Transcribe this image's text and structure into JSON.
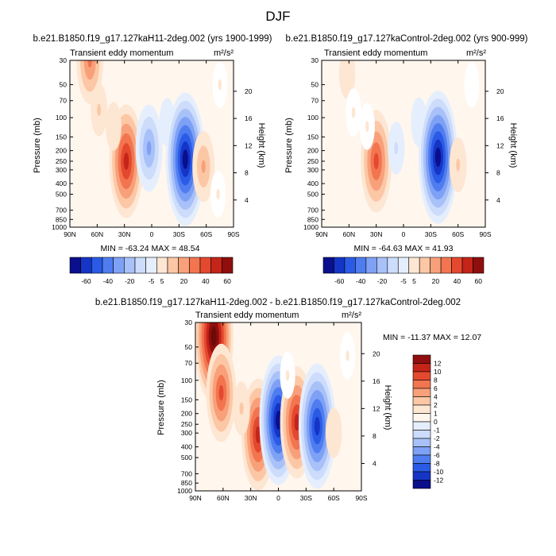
{
  "title": "DJF",
  "chart_data": [
    {
      "type": "heatmap",
      "title": "b.e21.B1850.f19_g17.127kaH11-2deg.002 (yrs 1900-1999)",
      "subtitle": "Transient eddy momentum",
      "units_label": "m²/s²",
      "xlabel": "",
      "ylabel": "Pressure (mb)",
      "ylabel_right": "Height (km)",
      "x_ticks": [
        "90N",
        "60N",
        "30N",
        "0",
        "30S",
        "60S",
        "90S"
      ],
      "x_tick_values": [
        90,
        60,
        30,
        0,
        -30,
        -60,
        -90
      ],
      "y_ticks": [
        "30",
        "50",
        "70",
        "100",
        "150",
        "200",
        "250",
        "300",
        "400",
        "500",
        "700",
        "850",
        "1000"
      ],
      "y_tick_values": [
        30,
        50,
        70,
        100,
        150,
        200,
        250,
        300,
        400,
        500,
        700,
        850,
        1000
      ],
      "ylim": [
        1000,
        30
      ],
      "height_ticks": [
        4,
        8,
        12,
        16,
        20
      ],
      "stats": "MIN = -63.24  MAX = 48.54",
      "min": -63.24,
      "max": 48.54,
      "features": [
        {
          "lat": 68,
          "p": 30,
          "value": 30
        },
        {
          "lat": 58,
          "p": 85,
          "value": 14
        },
        {
          "lat": 28,
          "p": 250,
          "value": 48.5
        },
        {
          "lat": 42,
          "p": 120,
          "value": 8
        },
        {
          "lat": 3,
          "p": 190,
          "value": -30
        },
        {
          "lat": -17,
          "p": 110,
          "value": -8
        },
        {
          "lat": -37,
          "p": 240,
          "value": -63.2
        },
        {
          "lat": -57,
          "p": 280,
          "value": 20
        },
        {
          "lat": -75,
          "p": 50,
          "value": 4
        },
        {
          "lat": -73,
          "p": 500,
          "value": 5
        }
      ]
    },
    {
      "type": "heatmap",
      "title": "b.e21.B1850.f19_g17.127kaControl-2deg.002 (yrs 900-999)",
      "subtitle": "Transient eddy momentum",
      "units_label": "m²/s²",
      "xlabel": "",
      "ylabel": "Pressure (mb)",
      "ylabel_right": "Height (km)",
      "x_ticks": [
        "90N",
        "60N",
        "30N",
        "0",
        "30S",
        "60S",
        "90S"
      ],
      "x_tick_values": [
        90,
        60,
        30,
        0,
        -30,
        -60,
        -90
      ],
      "y_ticks": [
        "30",
        "50",
        "70",
        "100",
        "150",
        "200",
        "250",
        "300",
        "400",
        "500",
        "700",
        "850",
        "1000"
      ],
      "y_tick_values": [
        30,
        50,
        70,
        100,
        150,
        200,
        250,
        300,
        400,
        500,
        700,
        850,
        1000
      ],
      "ylim": [
        1000,
        30
      ],
      "height_ticks": [
        4,
        8,
        12,
        16,
        20
      ],
      "stats": "MIN = -64.63  MAX = 41.93",
      "min": -64.63,
      "max": 41.93,
      "features": [
        {
          "lat": 62,
          "p": 40,
          "value": 10
        },
        {
          "lat": 55,
          "p": 90,
          "value": 8
        },
        {
          "lat": 30,
          "p": 250,
          "value": 41.9
        },
        {
          "lat": 40,
          "p": 120,
          "value": 6
        },
        {
          "lat": 8,
          "p": 190,
          "value": -15
        },
        {
          "lat": -17,
          "p": 110,
          "value": -10
        },
        {
          "lat": -38,
          "p": 230,
          "value": -64.6
        },
        {
          "lat": -60,
          "p": 270,
          "value": 18
        },
        {
          "lat": -75,
          "p": 50,
          "value": 4
        }
      ]
    },
    {
      "type": "heatmap",
      "title": "b.e21.B1850.f19_g17.127kaH11-2deg.002 - b.e21.B1850.f19_g17.127kaControl-2deg.002",
      "subtitle": "Transient eddy momentum",
      "units_label": "m²/s²",
      "xlabel": "",
      "ylabel": "Pressure (mb)",
      "ylabel_right": "Height (km)",
      "x_ticks": [
        "90N",
        "60N",
        "30N",
        "0",
        "30S",
        "60S",
        "90S"
      ],
      "x_tick_values": [
        90,
        60,
        30,
        0,
        -30,
        -60,
        -90
      ],
      "y_ticks": [
        "30",
        "50",
        "70",
        "100",
        "150",
        "200",
        "250",
        "300",
        "400",
        "500",
        "700",
        "850",
        "1000"
      ],
      "y_tick_values": [
        30,
        50,
        70,
        100,
        150,
        200,
        250,
        300,
        400,
        500,
        700,
        850,
        1000
      ],
      "ylim": [
        1000,
        30
      ],
      "height_ticks": [
        4,
        8,
        12,
        16,
        20
      ],
      "stats": "MIN = -11.37  MAX =  12.07",
      "min": -11.37,
      "max": 12.07,
      "features": [
        {
          "lat": 70,
          "p": 40,
          "value": 12.07
        },
        {
          "lat": 62,
          "p": 130,
          "value": 7
        },
        {
          "lat": 22,
          "p": 310,
          "value": 9
        },
        {
          "lat": 40,
          "p": 180,
          "value": 3
        },
        {
          "lat": 0,
          "p": 230,
          "value": -11.37
        },
        {
          "lat": -20,
          "p": 240,
          "value": 9
        },
        {
          "lat": -34,
          "p": 300,
          "value": -3
        },
        {
          "lat": -42,
          "p": 260,
          "value": -11
        },
        {
          "lat": -60,
          "p": 300,
          "value": 2
        },
        {
          "lat": -75,
          "p": 60,
          "value": 1
        },
        {
          "lat": -10,
          "p": 90,
          "value": 1
        }
      ]
    }
  ],
  "colorbars": [
    {
      "labels": [
        "-60",
        "-40",
        "-20",
        "-5",
        "5",
        "20",
        "40",
        "60"
      ],
      "colors": [
        "#0a0f8c",
        "#1535c7",
        "#2b5be6",
        "#4f7df0",
        "#7ea1f5",
        "#a8c1f8",
        "#cddcfb",
        "#e5eefd",
        "#fde6d2",
        "#fcc7a5",
        "#f8a07a",
        "#f2754f",
        "#e4492f",
        "#c52419",
        "#8e0f0d"
      ]
    },
    {
      "labels": [
        "-60",
        "-40",
        "-20",
        "-5",
        "5",
        "20",
        "40",
        "60"
      ],
      "colors": [
        "#0a0f8c",
        "#1535c7",
        "#2b5be6",
        "#4f7df0",
        "#7ea1f5",
        "#a8c1f8",
        "#cddcfb",
        "#e5eefd",
        "#fde6d2",
        "#fcc7a5",
        "#f8a07a",
        "#f2754f",
        "#e4492f",
        "#c52419",
        "#8e0f0d"
      ]
    },
    {
      "labels": [
        "12",
        "10",
        "8",
        "6",
        "4",
        "2",
        "1",
        "0",
        "-1",
        "-2",
        "-4",
        "-6",
        "-8",
        "-10",
        "-12"
      ],
      "colors": [
        "#8e0f0d",
        "#c52419",
        "#e4492f",
        "#f2754f",
        "#f8a07a",
        "#fcc7a5",
        "#fde6d2",
        "#fff6ee",
        "#e5eefd",
        "#cddcfb",
        "#a8c1f8",
        "#7ea1f5",
        "#4f7df0",
        "#2b5be6",
        "#1535c7",
        "#0a0f8c"
      ]
    }
  ]
}
